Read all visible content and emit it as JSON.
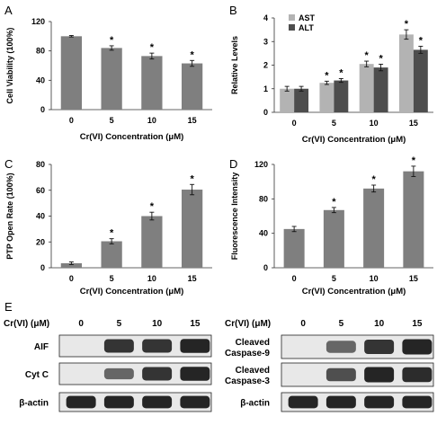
{
  "panels": {
    "A": "A",
    "B": "B",
    "C": "C",
    "D": "D",
    "E": "E"
  },
  "colors": {
    "bar_grey": "#7f7f7f",
    "ast_light": "#b3b3b3",
    "alt_dark": "#4d4d4d",
    "blot_bg": "#e8e8e8",
    "band": "#1a1a1a"
  },
  "chart_data": [
    {
      "id": "A",
      "type": "bar",
      "categories": [
        "0",
        "5",
        "10",
        "15"
      ],
      "series": [
        {
          "values": [
            100,
            84,
            73,
            63
          ],
          "errors": [
            1,
            3,
            4,
            4
          ]
        }
      ],
      "significance": [
        false,
        true,
        true,
        true
      ],
      "xlabel": "Cr(VI) Concentration (μM)",
      "ylabel": "Cell Viability (100%)",
      "ylim": [
        0,
        120
      ],
      "yticks": [
        "0",
        "40",
        "80",
        "120"
      ],
      "ytick_values": [
        0,
        40,
        80,
        120
      ]
    },
    {
      "id": "B",
      "type": "bar",
      "categories": [
        "0",
        "5",
        "10",
        "15"
      ],
      "series": [
        {
          "name": "AST",
          "values": [
            1.0,
            1.25,
            2.05,
            3.3
          ],
          "errors": [
            0.1,
            0.07,
            0.12,
            0.2
          ]
        },
        {
          "name": "ALT",
          "values": [
            1.0,
            1.35,
            1.9,
            2.65
          ],
          "errors": [
            0.1,
            0.08,
            0.14,
            0.15
          ]
        }
      ],
      "significance": [
        false,
        true,
        true,
        true
      ],
      "xlabel": "Cr(VI) Concentration (μM)",
      "ylabel": "Relative Levels",
      "ylim": [
        0,
        4
      ],
      "yticks": [
        "0",
        "1",
        "2",
        "3",
        "4"
      ],
      "ytick_values": [
        0,
        1,
        2,
        3,
        4
      ],
      "legend_position": "top-left"
    },
    {
      "id": "C",
      "type": "bar",
      "categories": [
        "0",
        "5",
        "10",
        "15"
      ],
      "series": [
        {
          "values": [
            3.5,
            20.5,
            40,
            60.5
          ],
          "errors": [
            1,
            2,
            3,
            4
          ]
        }
      ],
      "significance": [
        false,
        true,
        true,
        true
      ],
      "xlabel": "Cr(VI) Concentration (μM)",
      "ylabel": "PTP Open Rate (100%)",
      "ylim": [
        0,
        80
      ],
      "yticks": [
        "0",
        "20",
        "40",
        "60",
        "80"
      ],
      "ytick_values": [
        0,
        20,
        40,
        60,
        80
      ]
    },
    {
      "id": "D",
      "type": "bar",
      "categories": [
        "0",
        "5",
        "10",
        "15"
      ],
      "series": [
        {
          "values": [
            45,
            67,
            92,
            112
          ],
          "errors": [
            3,
            3,
            4,
            6
          ]
        }
      ],
      "significance": [
        false,
        true,
        true,
        true
      ],
      "xlabel": "Cr(VI) Concentration (μM)",
      "ylabel": "Fluorescence Intensity",
      "ylim": [
        0,
        120
      ],
      "yticks": [
        "0",
        "40",
        "80",
        "120"
      ],
      "ytick_values": [
        0,
        40,
        80,
        120
      ]
    }
  ],
  "significance_marker": "*",
  "blots": {
    "left": {
      "header": "Cr(VI) (μM)",
      "lanes": [
        "0",
        "5",
        "10",
        "15"
      ],
      "rows": [
        {
          "label": "AIF",
          "intensity": [
            0.05,
            0.9,
            0.9,
            1.0
          ]
        },
        {
          "label": "Cyt C",
          "intensity": [
            0.05,
            0.55,
            0.9,
            1.0
          ]
        },
        {
          "label": "β-actin",
          "intensity": [
            1.0,
            1.0,
            1.0,
            1.0
          ]
        }
      ]
    },
    "right": {
      "header": "Cr(VI) (μM)",
      "lanes": [
        "0",
        "5",
        "10",
        "15"
      ],
      "rows": [
        {
          "label_lines": [
            "Cleaved",
            "Caspase-9"
          ],
          "intensity": [
            0.05,
            0.55,
            0.9,
            1.0
          ]
        },
        {
          "label_lines": [
            "Cleaved",
            "Caspase-3"
          ],
          "intensity": [
            0.05,
            0.7,
            1.0,
            0.95
          ]
        },
        {
          "label": "β-actin",
          "intensity": [
            1.0,
            1.0,
            1.0,
            1.0
          ]
        }
      ]
    }
  }
}
